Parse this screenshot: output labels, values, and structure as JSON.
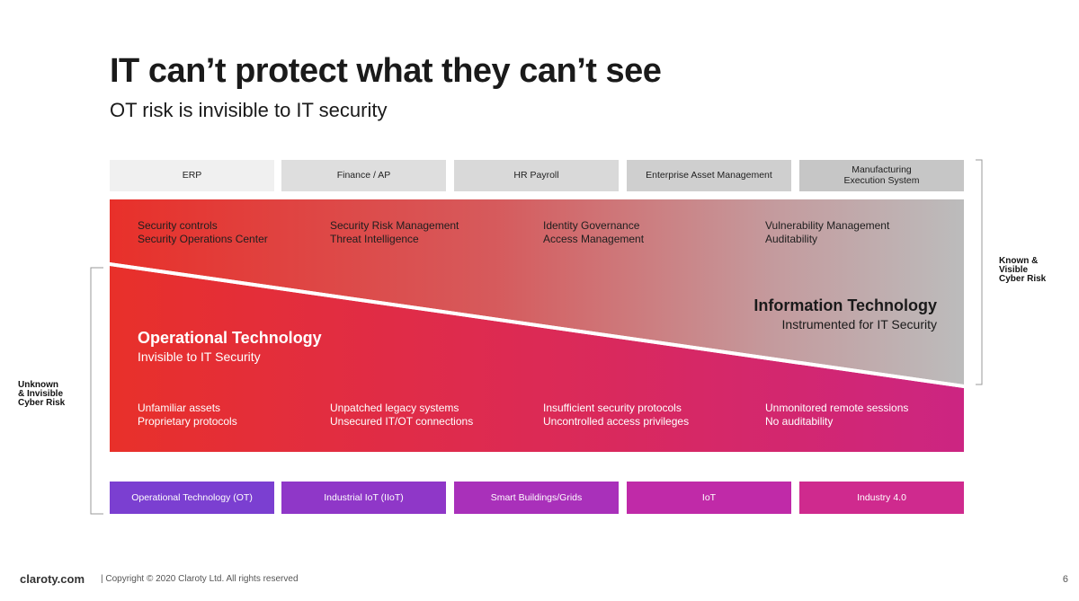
{
  "slide": {
    "title": "IT can’t protect what they can’t see",
    "subtitle": "OT risk is invisible to IT security"
  },
  "it_systems": [
    {
      "label": "ERP",
      "color": "#f0f0f0"
    },
    {
      "label": "Finance / AP",
      "color": "#dedede"
    },
    {
      "label": "HR Payroll",
      "color": "#d9d9d9"
    },
    {
      "label": "Enterprise Asset Management",
      "color": "#cfcfcf"
    },
    {
      "label": "Manufacturing\nExecution System",
      "color": "#c6c6c6"
    }
  ],
  "it_capabilities": [
    {
      "line1": "Security controls",
      "line2": "Security Operations Center"
    },
    {
      "line1": "Security Risk Management",
      "line2": "Threat Intelligence"
    },
    {
      "line1": "Identity Governance",
      "line2": "Access Management"
    },
    {
      "line1": "Vulnerability Management",
      "line2": "Auditability"
    }
  ],
  "it_section": {
    "heading": "Information Technology",
    "subheading": "Instrumented for IT Security"
  },
  "ot_section": {
    "heading": "Operational Technology",
    "subheading": "Invisible to IT Security"
  },
  "ot_gaps": [
    {
      "line1": "Unfamiliar assets",
      "line2": "Proprietary protocols"
    },
    {
      "line1": "Unpatched legacy systems",
      "line2": "Unsecured IT/OT connections"
    },
    {
      "line1": "Insufficient security protocols",
      "line2": "Uncontrolled access privileges"
    },
    {
      "line1": "Unmonitored remote sessions",
      "line2": "No auditability"
    }
  ],
  "ot_systems": [
    {
      "label": "Operational Technology (OT)",
      "color": "#7b3fd1"
    },
    {
      "label": "Industrial IoT (IIoT)",
      "color": "#8f37c8"
    },
    {
      "label": "Smart Buildings/Grids",
      "color": "#a930ba"
    },
    {
      "label": "IoT",
      "color": "#c02aa8"
    },
    {
      "label": "Industry 4.0",
      "color": "#cf2a8e"
    }
  ],
  "side_labels": {
    "known": [
      "Known &",
      "Visible",
      "Cyber Risk"
    ],
    "unknown": [
      "Unknown",
      "& Invisible",
      "Cyber Risk"
    ]
  },
  "footer": {
    "site": "claroty.com",
    "copyright": "|   Copyright © 2020 Claroty Ltd. All rights reserved",
    "page": "6"
  },
  "colors": {
    "red": "#e8302a",
    "magenta": "#d0237a",
    "gray": "#bcbcbc"
  }
}
